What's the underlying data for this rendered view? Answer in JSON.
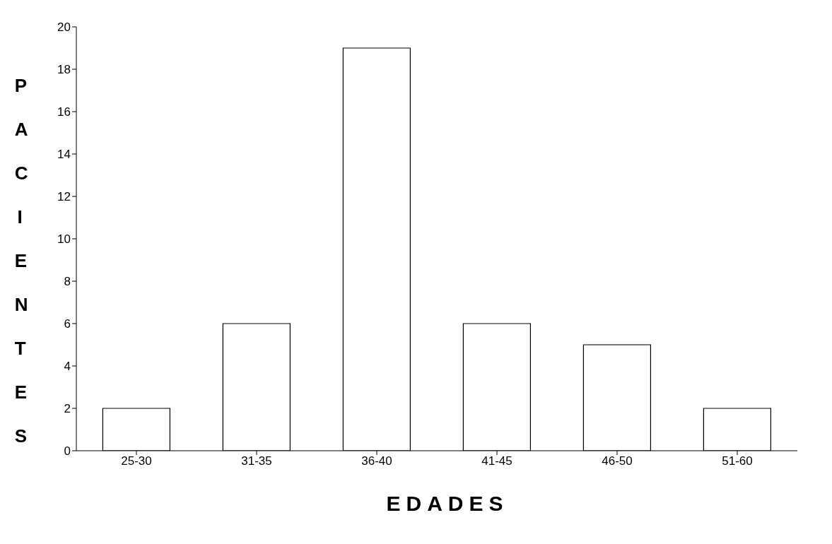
{
  "chart_data": {
    "type": "bar",
    "xlabel": "EDADES",
    "ylabel": "PACIENTES",
    "categories": [
      "25-30",
      "31-35",
      "36-40",
      "41-45",
      "46-50",
      "51-60"
    ],
    "values": [
      2,
      6,
      19,
      6,
      5,
      2
    ],
    "color": "#ffffff",
    "ylim": [
      0,
      20
    ],
    "yticks": [
      0,
      2,
      4,
      6,
      8,
      10,
      12,
      14,
      16,
      18,
      20
    ],
    "grid": false
  }
}
